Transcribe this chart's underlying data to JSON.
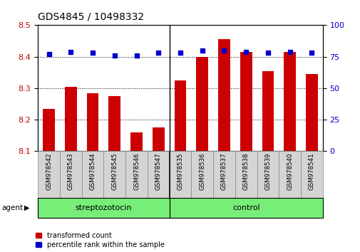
{
  "title": "GDS4845 / 10498332",
  "samples": [
    "GSM978542",
    "GSM978543",
    "GSM978544",
    "GSM978545",
    "GSM978546",
    "GSM978547",
    "GSM978535",
    "GSM978536",
    "GSM978537",
    "GSM978538",
    "GSM978539",
    "GSM978540",
    "GSM978541"
  ],
  "transformed_count": [
    8.235,
    8.305,
    8.285,
    8.275,
    8.16,
    8.175,
    8.325,
    8.4,
    8.455,
    8.415,
    8.355,
    8.415,
    8.345
  ],
  "percentile_rank": [
    77,
    79,
    78,
    76,
    76,
    78,
    78,
    80,
    80,
    79,
    78,
    79,
    78
  ],
  "ylim_left": [
    8.1,
    8.5
  ],
  "ylim_right": [
    0,
    100
  ],
  "yticks_left": [
    8.1,
    8.2,
    8.3,
    8.4,
    8.5
  ],
  "yticks_right": [
    0,
    25,
    50,
    75,
    100
  ],
  "bar_color": "#cc0000",
  "dot_color": "#0000cc",
  "bar_baseline": 8.1,
  "group1_label": "streptozotocin",
  "group1_count": 6,
  "group2_label": "control",
  "group2_count": 7,
  "group_bg_color": "#77ee77",
  "agent_label": "agent",
  "legend_bar_label": "transformed count",
  "legend_dot_label": "percentile rank within the sample",
  "title_fontsize": 10,
  "tick_fontsize": 8,
  "label_fontsize": 8
}
